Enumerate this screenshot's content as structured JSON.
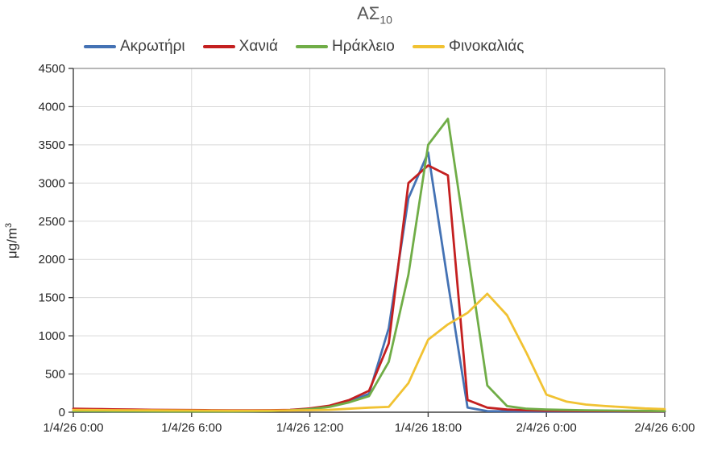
{
  "title": {
    "main": "ΑΣ",
    "sub": "10"
  },
  "y_axis_title": {
    "main": "μg/m",
    "sup": "3"
  },
  "colors": {
    "akrotiri_blue": "#4472B4",
    "chania_red": "#C42020",
    "irakleio_green": "#70AD47",
    "finokalias_yellow": "#F1C232",
    "gridline": "#D9D9D9",
    "axis": "#404040",
    "plot_border": "#8C8C8C",
    "tick_text": "#262626",
    "legend_text": "#404040",
    "title_text": "#595959"
  },
  "chart_data": {
    "type": "line",
    "title": "ΑΣ10",
    "ylabel": "μg/m3",
    "xlabel": "",
    "grid": true,
    "legend_position": "top",
    "ylim": [
      0,
      4500
    ],
    "y_ticks": [
      0,
      500,
      1000,
      1500,
      2000,
      2500,
      3000,
      3500,
      4000,
      4500
    ],
    "x_hours_max": 30,
    "x_step_hours": 1,
    "x_ticks": [
      {
        "hour": 0,
        "label": "1/4/26 0:00"
      },
      {
        "hour": 6,
        "label": "1/4/26 6:00"
      },
      {
        "hour": 12,
        "label": "1/4/26 12:00"
      },
      {
        "hour": 18,
        "label": "1/4/26 18:00"
      },
      {
        "hour": 24,
        "label": "2/4/26 0:00"
      },
      {
        "hour": 30,
        "label": "2/4/26 6:00"
      }
    ],
    "series": [
      {
        "name": "Ακρωτήρι",
        "color": "#4472B4",
        "values": [
          15,
          14,
          13,
          12,
          11,
          10,
          10,
          10,
          11,
          13,
          18,
          28,
          45,
          75,
          140,
          240,
          1100,
          2800,
          3400,
          1700,
          60,
          15,
          12,
          10,
          10,
          10,
          10,
          10,
          10,
          10,
          10
        ]
      },
      {
        "name": "Χανιά",
        "color": "#C42020",
        "values": [
          45,
          42,
          38,
          35,
          32,
          30,
          28,
          26,
          25,
          25,
          26,
          30,
          50,
          85,
          160,
          280,
          900,
          3000,
          3230,
          3100,
          160,
          60,
          35,
          25,
          20,
          18,
          16,
          15,
          14,
          13,
          12
        ]
      },
      {
        "name": "Ηράκλειο",
        "color": "#70AD47",
        "values": [
          15,
          14,
          13,
          12,
          11,
          10,
          10,
          10,
          10,
          12,
          15,
          25,
          40,
          70,
          130,
          210,
          660,
          1800,
          3500,
          3840,
          2100,
          350,
          80,
          45,
          35,
          30,
          25,
          22,
          20,
          18,
          15
        ]
      },
      {
        "name": "Φινοκαλιάς",
        "color": "#F1C232",
        "values": [
          30,
          28,
          26,
          25,
          24,
          23,
          22,
          21,
          20,
          20,
          21,
          23,
          26,
          32,
          45,
          60,
          70,
          380,
          950,
          1150,
          1300,
          1550,
          1270,
          770,
          230,
          140,
          100,
          80,
          65,
          50,
          40
        ]
      }
    ]
  }
}
